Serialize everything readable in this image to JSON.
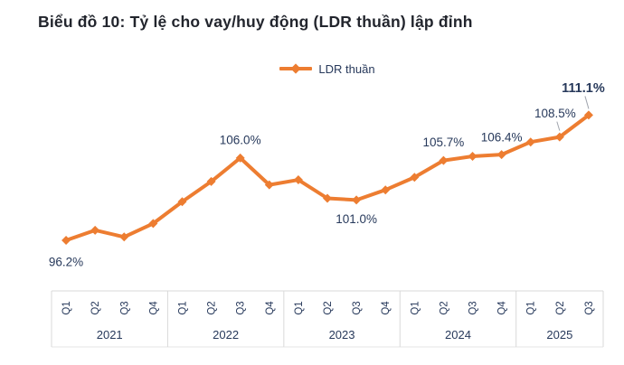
{
  "title": "Biểu đồ 10: Tỷ lệ cho vay/huy động (LDR thuần) lập đỉnh",
  "legend": {
    "series_label": "LDR thuần"
  },
  "colors": {
    "line": "#ED7D31",
    "marker": "#ED7D31",
    "title_text": "#22252d",
    "label_text": "#27395b",
    "axis_text": "#27395b",
    "grid_line": "#d9d9d9",
    "bottom_line": "#e6e6e6",
    "leader_line": "#a0a4ad",
    "background": "#ffffff"
  },
  "chart_data": {
    "type": "line",
    "title": "Biểu đồ 10: Tỷ lệ cho vay/huy động (LDR thuần) lập đỉnh",
    "legend_position": "top-center",
    "unit": "%",
    "grid": false,
    "ylim": [
      95,
      112
    ],
    "groups": [
      {
        "year": "2021",
        "quarters": [
          "Q1",
          "Q2",
          "Q3",
          "Q4"
        ]
      },
      {
        "year": "2022",
        "quarters": [
          "Q1",
          "Q2",
          "Q3",
          "Q4"
        ]
      },
      {
        "year": "2023",
        "quarters": [
          "Q1",
          "Q2",
          "Q3",
          "Q4"
        ]
      },
      {
        "year": "2024",
        "quarters": [
          "Q1",
          "Q2",
          "Q3",
          "Q4"
        ]
      },
      {
        "year": "2025",
        "quarters": [
          "Q1",
          "Q2",
          "Q3"
        ]
      }
    ],
    "series": [
      {
        "name": "LDR thuần",
        "values": [
          96.2,
          97.4,
          96.6,
          98.2,
          100.8,
          103.2,
          106.0,
          102.8,
          103.4,
          101.2,
          101.0,
          102.2,
          103.7,
          105.7,
          106.2,
          106.4,
          107.9,
          108.5,
          111.1
        ]
      }
    ],
    "point_labels": [
      {
        "index": 0,
        "text": "96.2%",
        "offset": [
          0,
          24
        ],
        "bold": false,
        "leader": false
      },
      {
        "index": 6,
        "text": "106.0%",
        "offset": [
          0,
          -20
        ],
        "bold": false,
        "leader": false
      },
      {
        "index": 10,
        "text": "101.0%",
        "offset": [
          0,
          21
        ],
        "bold": false,
        "leader": false
      },
      {
        "index": 13,
        "text": "105.7%",
        "offset": [
          0,
          -20
        ],
        "bold": false,
        "leader": false
      },
      {
        "index": 15,
        "text": "106.4%",
        "offset": [
          0,
          -19
        ],
        "bold": false,
        "leader": false
      },
      {
        "index": 17,
        "text": "108.5%",
        "offset": [
          -5,
          -26
        ],
        "bold": false,
        "leader": true
      },
      {
        "index": 18,
        "text": "111.1%",
        "offset": [
          -6,
          -30
        ],
        "bold": true,
        "leader": true
      }
    ]
  }
}
